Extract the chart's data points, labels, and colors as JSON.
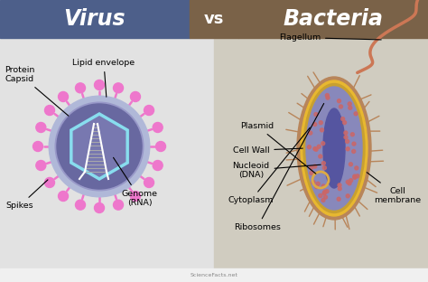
{
  "title_virus": "Virus",
  "title_vs": "vs",
  "title_bacteria": "Bacteria",
  "header_bg_virus": "#4d5f8a",
  "header_bg_vs": "#7a6248",
  "header_bg_bacteria": "#7a6248",
  "body_bg_left": "#e2e2e2",
  "body_bg_right": "#d0ccc0",
  "footer_text": "ScienceFacts.net",
  "virus_outer_color": "#9898c8",
  "virus_inner_color": "#6868a0",
  "virus_ring_color": "#b0b8d8",
  "virus_capsid_color": "#88ddee",
  "virus_spike_color": "#ee77cc",
  "virus_spike_ball_color": "#ee77cc",
  "bacteria_outer_color": "#b8855a",
  "bacteria_wall_color": "#e8b830",
  "bacteria_cytoplasm_color": "#8888bb",
  "bacteria_nucleoid_color": "#5555a0",
  "bacteria_flagellum_color": "#cc7755",
  "bacteria_pili_color": "#b8855a",
  "bacteria_ribosome_color": "#cc6666"
}
